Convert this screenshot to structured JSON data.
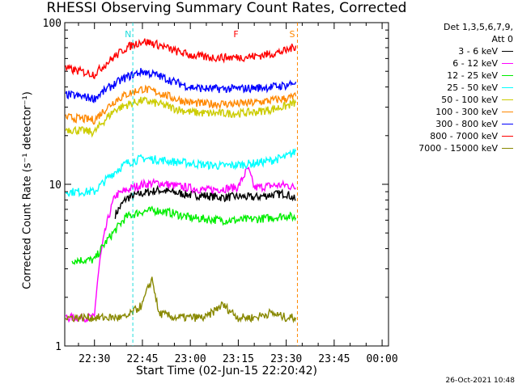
{
  "chart_data": {
    "type": "line",
    "title": "RHESSI Observing Summary Count Rates, Corrected",
    "xlabel": "Start Time (02-Jun-15 22:20:42)",
    "ylabel": "Corrected Count Rate (s⁻¹ detector⁻¹)",
    "yscale": "log",
    "ylim": [
      1,
      100
    ],
    "y_tick_labels": [
      "1",
      "10",
      "100"
    ],
    "x_tick_labels": [
      "22:30",
      "22:45",
      "23:00",
      "23:15",
      "23:30",
      "23:45",
      "00:00"
    ],
    "x_tick_minutes": [
      30,
      45,
      60,
      75,
      90,
      105,
      120
    ],
    "x_range_minutes": [
      20.7,
      122
    ],
    "grid": false,
    "legend_placement": "top-right",
    "legend_header": [
      "Det 1,3,5,6,7,9,",
      "Att 0"
    ],
    "footer": "26-Oct-2021 10:48",
    "annotations": [
      {
        "text": "N",
        "x_minute": 42,
        "color": "#22dddd"
      },
      {
        "text": "F",
        "x_minute": 76,
        "color": "#ff0000"
      },
      {
        "text": "S",
        "x_minute": 93.5,
        "color": "#ff8800"
      }
    ],
    "series": [
      {
        "name": "3 - 6 keV",
        "color": "#000000",
        "x": [
          36.5,
          40,
          45,
          50,
          55,
          60,
          65,
          70,
          75,
          80,
          85,
          90,
          93
        ],
        "y": [
          6.5,
          8.2,
          8.8,
          9.2,
          8.9,
          8.6,
          8.5,
          8.3,
          8.4,
          8.3,
          8.6,
          8.8,
          8.0
        ]
      },
      {
        "name": "6 - 12 keV",
        "color": "#ff00ff",
        "x": [
          21,
          30,
          36.5,
          40,
          45,
          50,
          55,
          60,
          65,
          70,
          75,
          78,
          80,
          85,
          90,
          93
        ],
        "y": [
          1.5,
          1.5,
          8.5,
          9.2,
          10.0,
          10.2,
          9.8,
          9.5,
          9.2,
          9.4,
          9.6,
          12.5,
          9.5,
          9.8,
          9.9,
          9.5
        ]
      },
      {
        "name": "12 - 25 keV",
        "color": "#00ee00",
        "x": [
          23,
          30,
          36.5,
          40,
          45,
          50,
          55,
          60,
          65,
          70,
          75,
          80,
          85,
          90,
          93
        ],
        "y": [
          3.4,
          3.4,
          5.2,
          6.3,
          6.8,
          6.9,
          6.6,
          6.2,
          6.1,
          6.0,
          6.0,
          6.1,
          6.2,
          6.4,
          6.2
        ]
      },
      {
        "name": "25 - 50 keV",
        "color": "#00ffff",
        "x": [
          21,
          30,
          36.5,
          40,
          45,
          50,
          55,
          60,
          65,
          70,
          75,
          80,
          85,
          90,
          93
        ],
        "y": [
          9.0,
          9.0,
          12.0,
          13.5,
          14.5,
          14.2,
          13.8,
          13.5,
          13.2,
          13.0,
          13.2,
          13.5,
          14.0,
          14.8,
          16.0
        ]
      },
      {
        "name": "50 - 100 keV",
        "color": "#cccc00",
        "x": [
          21,
          30,
          36.5,
          40,
          45,
          50,
          55,
          60,
          65,
          70,
          75,
          80,
          85,
          90,
          93
        ],
        "y": [
          22.0,
          21.0,
          29.0,
          31.0,
          33.0,
          31.5,
          29.5,
          28.0,
          27.5,
          27.5,
          27.5,
          28.0,
          29.0,
          30.5,
          32.0
        ]
      },
      {
        "name": "100 - 300 keV",
        "color": "#ff8800",
        "x": [
          21,
          30,
          36.5,
          40,
          45,
          50,
          55,
          60,
          65,
          70,
          75,
          80,
          85,
          90,
          93
        ],
        "y": [
          26.0,
          25.0,
          33.0,
          36.0,
          39.0,
          37.0,
          34.0,
          32.0,
          31.5,
          31.5,
          31.5,
          32.0,
          33.0,
          34.0,
          35.0
        ]
      },
      {
        "name": "300 - 800 keV",
        "color": "#0000ff",
        "x": [
          21,
          30,
          36.5,
          40,
          45,
          50,
          55,
          60,
          65,
          70,
          75,
          80,
          85,
          90,
          93
        ],
        "y": [
          36.0,
          34.0,
          42.0,
          46.0,
          50.0,
          47.0,
          43.0,
          40.0,
          39.0,
          39.0,
          39.0,
          39.5,
          40.0,
          41.0,
          43.0
        ]
      },
      {
        "name": "800 - 7000 keV",
        "color": "#ff0000",
        "x": [
          21,
          30,
          36.5,
          40,
          45,
          50,
          55,
          60,
          65,
          70,
          75,
          80,
          85,
          90,
          93
        ],
        "y": [
          52.0,
          48.0,
          62.0,
          70.0,
          77.0,
          73.0,
          67.0,
          63.0,
          61.0,
          61.0,
          61.0,
          62.0,
          64.0,
          67.0,
          72.0
        ]
      },
      {
        "name": "7000 - 15000 keV",
        "color": "#888800",
        "x": [
          21,
          30,
          36.5,
          40,
          45,
          48,
          50,
          55,
          60,
          65,
          70,
          75,
          80,
          85,
          90,
          93
        ],
        "y": [
          1.5,
          1.5,
          1.5,
          1.5,
          1.8,
          2.6,
          1.6,
          1.5,
          1.5,
          1.5,
          1.8,
          1.5,
          1.5,
          1.6,
          1.5,
          1.5
        ]
      }
    ]
  }
}
